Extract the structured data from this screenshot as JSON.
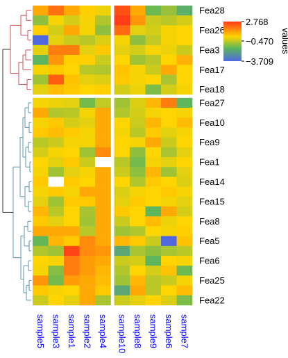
{
  "chart_data": {
    "type": "heatmap",
    "title": "",
    "columns": [
      "sample5",
      "sample3",
      "sample1",
      "sample2",
      "sample4",
      "sample10",
      "sample8",
      "sample9",
      "sample6",
      "sample7"
    ],
    "column_groups": [
      5,
      5
    ],
    "row_groups": [
      9,
      21
    ],
    "row_labels": [
      {
        "row": 0,
        "text": "Fea28"
      },
      {
        "row": 2,
        "text": "Fea26"
      },
      {
        "row": 4,
        "text": "Fea3"
      },
      {
        "row": 6,
        "text": "Fea17"
      },
      {
        "row": 8,
        "text": "Fea18"
      },
      {
        "row": 9,
        "text": "Fea27"
      },
      {
        "row": 11,
        "text": "Fea10"
      },
      {
        "row": 13,
        "text": "Fea9"
      },
      {
        "row": 15,
        "text": "Fea1"
      },
      {
        "row": 17,
        "text": "Fea14"
      },
      {
        "row": 19,
        "text": "Fea15"
      },
      {
        "row": 21,
        "text": "Fea8"
      },
      {
        "row": 23,
        "text": "Fea5"
      },
      {
        "row": 25,
        "text": "Fea6"
      },
      {
        "row": 27,
        "text": "Fea25"
      },
      {
        "row": 29,
        "text": "Fea22"
      }
    ],
    "values": [
      [
        1.0,
        1.9,
        1.0,
        0.4,
        0.1,
        2.4,
        1.0,
        -1.4,
        -0.9,
        -1.8
      ],
      [
        -1.0,
        0.2,
        -0.2,
        0.2,
        -0.6,
        2.7,
        1.3,
        -0.3,
        -0.5,
        -0.2
      ],
      [
        0.4,
        -0.2,
        1.0,
        0.2,
        -1.0,
        2.0,
        0.0,
        -0.2,
        0.2,
        0.3
      ],
      [
        -3.7,
        0.0,
        -0.3,
        -0.5,
        -0.1,
        0.2,
        -1.0,
        -0.4,
        0.2,
        0.3
      ],
      [
        0.0,
        1.7,
        1.7,
        0.0,
        0.5,
        0.0,
        -0.2,
        0.2,
        0.1,
        -0.3
      ],
      [
        -1.6,
        1.3,
        0.4,
        0.4,
        -0.3,
        0.3,
        -0.8,
        -0.5,
        0.3,
        0.9
      ],
      [
        0.2,
        0.5,
        0.3,
        -0.5,
        -0.6,
        0.6,
        0.2,
        -0.3,
        1.0,
        0.3
      ],
      [
        -0.8,
        2.2,
        0.6,
        0.0,
        -0.1,
        0.5,
        0.2,
        0.3,
        -0.7,
        0.3
      ],
      [
        0.0,
        0.7,
        0.5,
        0.3,
        0.4,
        -0.2,
        0.1,
        -1.2,
        -0.2,
        0.2
      ],
      [
        0.2,
        0.1,
        0.0,
        -1.3,
        -0.4,
        -0.8,
        -0.1,
        0.8,
        1.7,
        -1.6
      ],
      [
        1.0,
        -0.6,
        -0.5,
        0.2,
        1.0,
        -0.6,
        -0.2,
        0.2,
        0.3,
        0.2
      ],
      [
        0.2,
        0.5,
        -0.2,
        0.0,
        1.0,
        0.3,
        -0.3,
        0.8,
        0.3,
        0.7
      ],
      [
        0.5,
        0.7,
        0.5,
        0.2,
        1.0,
        0.2,
        -0.5,
        0.5,
        0.0,
        0.2
      ],
      [
        -0.5,
        -0.3,
        0.2,
        0.2,
        1.0,
        0.3,
        0.2,
        1.0,
        -0.3,
        0.3
      ],
      [
        -0.2,
        0.2,
        0.3,
        -0.8,
        1.5,
        0.3,
        -1.0,
        0.3,
        -0.7,
        0.0
      ],
      [
        0.3,
        0.0,
        0.5,
        -0.3,
        null,
        -0.5,
        -1.3,
        0.2,
        0.0,
        0.3
      ],
      [
        0.2,
        -0.8,
        0.0,
        0.2,
        1.0,
        -0.3,
        -1.0,
        0.8,
        -0.8,
        0.0
      ],
      [
        0.5,
        null,
        0.5,
        0.3,
        1.0,
        0.3,
        -0.6,
        0.5,
        0.3,
        -0.1
      ],
      [
        0.2,
        0.5,
        0.2,
        1.0,
        1.0,
        -0.1,
        0.2,
        0.3,
        0.5,
        0.2
      ],
      [
        0.0,
        -0.8,
        0.5,
        0.5,
        1.0,
        0.0,
        0.5,
        0.3,
        0.2,
        0.0
      ],
      [
        0.8,
        -0.5,
        0.3,
        -0.7,
        1.0,
        0.5,
        0.3,
        -1.6,
        1.0,
        -0.2
      ],
      [
        0.5,
        0.0,
        0.3,
        -0.8,
        1.0,
        -0.3,
        0.3,
        0.7,
        0.1,
        0.3
      ],
      [
        1.0,
        1.0,
        1.0,
        -0.5,
        1.0,
        -0.8,
        -0.6,
        0.3,
        0.2,
        0.4
      ],
      [
        -1.5,
        0.8,
        0.5,
        1.5,
        1.0,
        0.8,
        0.5,
        -0.3,
        -3.7,
        0.6
      ],
      [
        -0.6,
        -0.8,
        2.6,
        1.5,
        1.3,
        -2.0,
        -0.7,
        -1.0,
        -0.7,
        -0.5
      ],
      [
        0.3,
        0.2,
        1.7,
        1.2,
        1.0,
        -0.3,
        -0.2,
        -1.6,
        0.3,
        0.2
      ],
      [
        0.2,
        -1.1,
        1.7,
        1.2,
        0.8,
        -0.6,
        0.3,
        -0.2,
        0.6,
        -1.4
      ],
      [
        1.3,
        -1.3,
        1.2,
        1.0,
        0.7,
        -0.8,
        0.8,
        -0.5,
        -0.3,
        0.2
      ],
      [
        0.5,
        0.2,
        0.3,
        1.0,
        0.5,
        -2.0,
        1.0,
        -0.5,
        0.3,
        0.7
      ],
      [
        -0.3,
        0.3,
        0.0,
        1.0,
        -0.7,
        -0.3,
        0.0,
        0.3,
        -0.1,
        -1.2
      ]
    ],
    "color_scale": {
      "min": -3.709,
      "mid": -0.47,
      "max": 2.768,
      "colors": [
        "#4f68e0",
        "#5db65a",
        "#ffd500",
        "#ff3a18"
      ]
    },
    "legend": {
      "title": "values",
      "ticks": [
        "2.768",
        "−0.470",
        "−3.709"
      ],
      "position": "top-right"
    },
    "dendrogram": {
      "top_cluster_color": "#d0505a",
      "bottom_cluster_color": "#5b96b0"
    }
  }
}
